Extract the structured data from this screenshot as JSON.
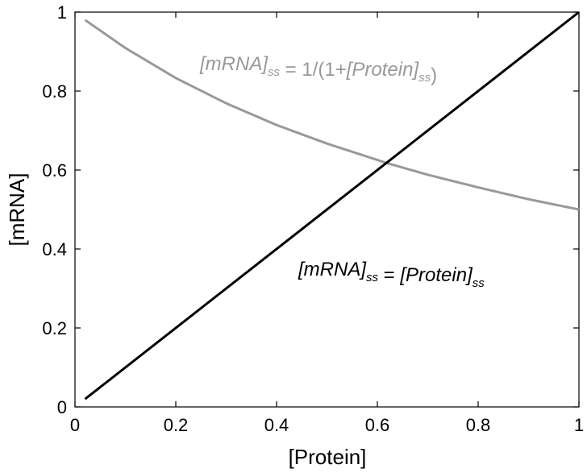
{
  "chart_data": {
    "type": "line",
    "title": "",
    "xlabel": "[Protein]",
    "ylabel": "[mRNA]",
    "xlim": [
      0,
      1
    ],
    "ylim": [
      0,
      1
    ],
    "xticks": [
      0,
      0.2,
      0.4,
      0.6,
      0.8,
      1
    ],
    "xtick_labels": [
      "0",
      "0.2",
      "0.4",
      "0.6",
      "0.8",
      "1"
    ],
    "yticks": [
      0,
      0.2,
      0.4,
      0.6,
      0.8,
      1
    ],
    "ytick_labels": [
      "0",
      "0.2",
      "0.4",
      "0.6",
      "0.8",
      "1"
    ],
    "grid": false,
    "series": [
      {
        "color": "#999999",
        "x": [
          0.02,
          0.1,
          0.2,
          0.3,
          0.4,
          0.5,
          0.618,
          0.7,
          0.8,
          0.9,
          1.0
        ],
        "y": [
          0.98,
          0.909,
          0.833,
          0.769,
          0.714,
          0.667,
          0.618,
          0.588,
          0.556,
          0.526,
          0.5
        ]
      },
      {
        "color": "#000000",
        "x": [
          0.02,
          1.0
        ],
        "y": [
          0.02,
          1.0
        ]
      }
    ],
    "annotations": [
      {
        "color": "#999999",
        "parts": [
          {
            "t": "[mRNA]",
            "style": "italic"
          },
          {
            "t": "ss",
            "style": "italic-sub"
          },
          {
            "t": " = 1/(1+",
            "style": "normal"
          },
          {
            "t": "[Protein]",
            "style": "italic"
          },
          {
            "t": "ss",
            "style": "italic-sub"
          },
          {
            "t": ")",
            "style": "normal"
          }
        ]
      },
      {
        "color": "#000000",
        "parts": [
          {
            "t": "[mRNA]",
            "style": "italic"
          },
          {
            "t": "ss",
            "style": "italic-sub"
          },
          {
            "t": " = ",
            "style": "normal"
          },
          {
            "t": "[Protein]",
            "style": "italic"
          },
          {
            "t": "ss",
            "style": "italic-sub"
          }
        ]
      }
    ]
  }
}
